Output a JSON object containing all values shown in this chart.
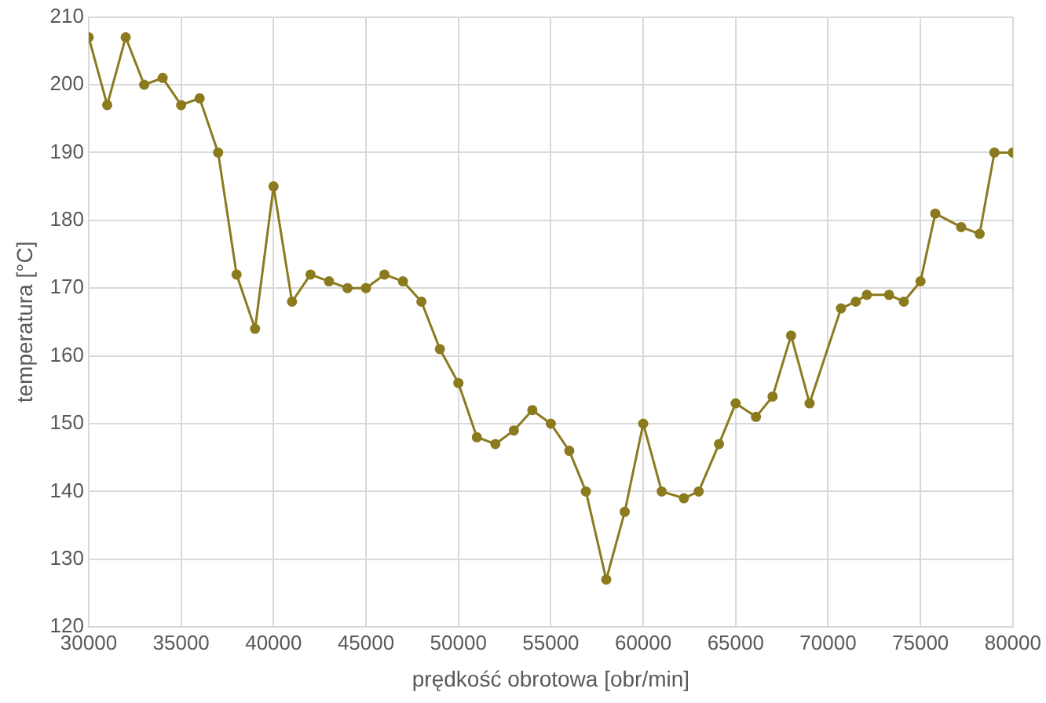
{
  "chart_data": {
    "type": "line",
    "xlabel": "prędkość obrotowa [obr/min]",
    "ylabel": "temperatura [°C]",
    "x": [
      30000,
      31000,
      32000,
      33000,
      34000,
      35000,
      36000,
      37000,
      38000,
      39000,
      40000,
      41000,
      42000,
      43000,
      44000,
      45000,
      46000,
      47000,
      48000,
      49000,
      50000,
      51000,
      52000,
      53000,
      54000,
      55000,
      56000,
      56900,
      58000,
      59000,
      60000,
      61000,
      62200,
      63000,
      64100,
      65000,
      66100,
      67000,
      68000,
      69000,
      70700,
      71500,
      72100,
      73300,
      74100,
      75000,
      75800,
      77200,
      78200,
      79000,
      80000
    ],
    "series": [
      {
        "color": "#8b7a1e",
        "values": [
          207,
          197,
          207,
          200,
          201,
          197,
          198,
          190,
          172,
          164,
          185,
          168,
          172,
          171,
          170,
          170,
          172,
          171,
          168,
          161,
          156,
          148,
          147,
          149,
          152,
          150,
          146,
          140,
          127,
          137,
          150,
          140,
          139,
          140,
          147,
          153,
          151,
          154,
          163,
          153,
          167,
          168,
          169,
          169,
          168,
          171,
          181,
          179,
          178,
          190,
          190
        ]
      }
    ],
    "xlim": [
      30000,
      80000
    ],
    "xticks": [
      30000,
      35000,
      40000,
      45000,
      50000,
      55000,
      60000,
      65000,
      70000,
      75000,
      80000
    ],
    "ylim": [
      120,
      210
    ],
    "yticks": [
      120,
      130,
      140,
      150,
      160,
      170,
      180,
      190,
      200,
      210
    ],
    "grid": true,
    "legend": false,
    "marker": "circle",
    "line_style": "solid"
  }
}
